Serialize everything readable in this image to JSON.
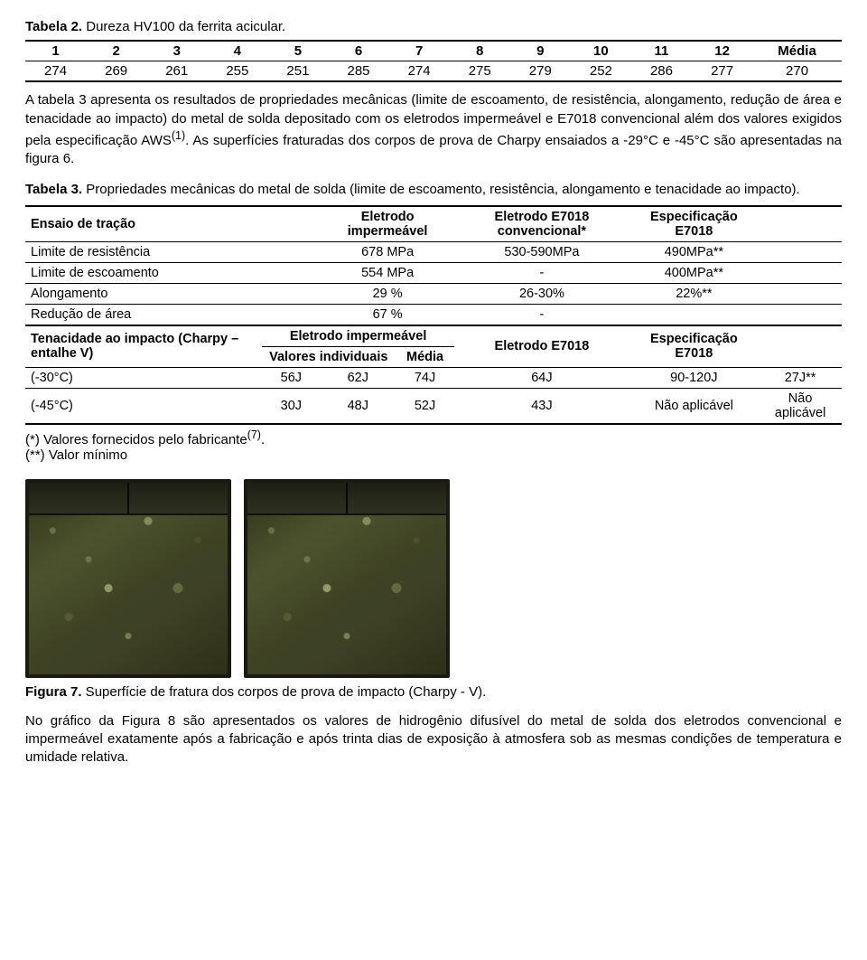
{
  "tabela2": {
    "caption_lead": "Tabela 2.",
    "caption_rest": " Dureza HV100 da ferrita acicular.",
    "headers": [
      "1",
      "2",
      "3",
      "4",
      "5",
      "6",
      "7",
      "8",
      "9",
      "10",
      "11",
      "12",
      "Média"
    ],
    "values": [
      "274",
      "269",
      "261",
      "255",
      "251",
      "285",
      "274",
      "275",
      "279",
      "252",
      "286",
      "277",
      "270"
    ]
  },
  "para1": "A tabela 3 apresenta os resultados de propriedades mecânicas (limite de escoamento, de resistência, alongamento, redução de área e tenacidade ao impacto) do metal de solda depositado com os eletrodos impermeável e E7018 convencional além dos valores exigidos pela especificação AWS",
  "para1_sup": "(1)",
  "para1_tail": ". As superfícies fraturadas dos corpos de prova de Charpy ensaiados a -29°C e -45°C são apresentadas na figura 6.",
  "tabela3": {
    "caption_lead": "Tabela 3.",
    "caption_rest": " Propriedades mecânicas do metal de solda (limite de escoamento, resistência, alongamento e tenacidade ao impacto).",
    "h_ensaio": "Ensaio de tração",
    "h_imp": "Eletrodo impermeável",
    "h_conv": "Eletrodo E7018 convencional*",
    "h_spec": "Especificação E7018",
    "rows_top": [
      {
        "label": "Limite de resistência",
        "imp": "678 MPa",
        "conv": "530-590MPa",
        "spec": "490MPa**"
      },
      {
        "label": "Limite de escoamento",
        "imp": "554 MPa",
        "conv": "-",
        "spec": "400MPa**"
      },
      {
        "label": "Alongamento",
        "imp": "29 %",
        "conv": "26-30%",
        "spec": "22%**"
      },
      {
        "label": "Redução de área",
        "imp": "67 %",
        "conv": "-",
        "spec": ""
      }
    ],
    "h2_ten": "Tenacidade ao impacto (Charpy – entalhe V)",
    "h2_imp": "Eletrodo impermeável",
    "h2_valind": "Valores individuais",
    "h2_media": "Média",
    "h2_e7018": "Eletrodo E7018",
    "h2_spec": "Especificação E7018",
    "rows_bottom": [
      {
        "label": "(-30°C)",
        "v1": "56J",
        "v2": "62J",
        "v3": "74J",
        "media": "64J",
        "e7018": "90-120J",
        "spec": "27J**"
      },
      {
        "label": "(-45°C)",
        "v1": "30J",
        "v2": "48J",
        "v3": "52J",
        "media": "43J",
        "e7018": "Não aplicável",
        "spec": "Não aplicável"
      }
    ],
    "foot1a": "(*) Valores fornecidos pelo fabricante",
    "foot1sup": "(7)",
    "foot1b": ".",
    "foot2": "(**) Valor mínimo"
  },
  "figura7": {
    "lead": "Figura 7.",
    "rest": " Superfície de fratura dos corpos de prova de impacto (Charpy - V)."
  },
  "para2": "No gráfico da Figura 8 são apresentados os valores de hidrogênio difusível do metal de solda dos eletrodos convencional e impermeável exatamente após a fabricação e após trinta dias de exposição à atmosfera sob as mesmas condições de temperatura e umidade relativa."
}
